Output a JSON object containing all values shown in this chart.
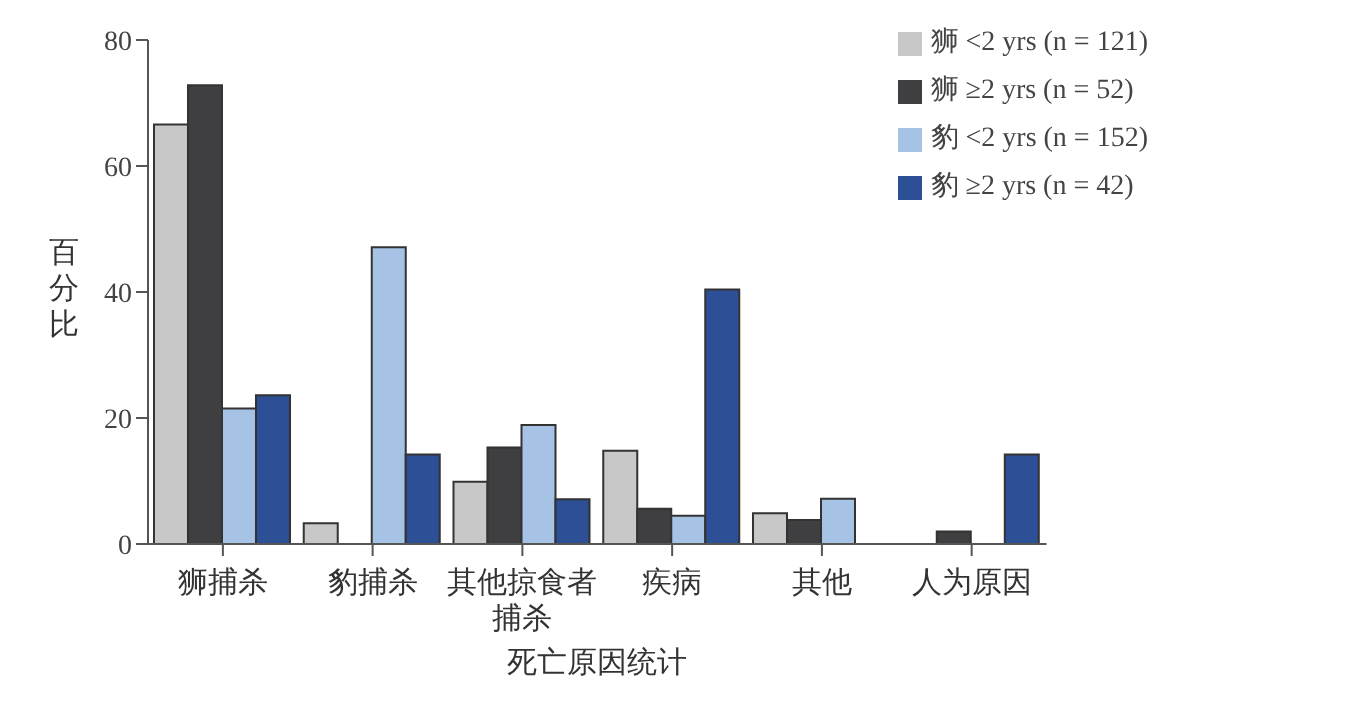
{
  "chart_data": {
    "type": "bar",
    "xlabel": "死亡原因统计",
    "ylabel": "百分比",
    "categories": [
      "狮捕杀",
      "豹捕杀",
      "其他掠食者捕杀",
      "疾病",
      "其他",
      "人为原因"
    ],
    "series": [
      {
        "name": "狮 <2 yrs (n = 121)",
        "color": "#c8c8c8",
        "values": [
          66.6,
          3.3,
          9.9,
          14.8,
          4.9,
          0
        ]
      },
      {
        "name": "狮 ≥2 yrs (n = 52)",
        "color": "#3f3f41",
        "values": [
          72.8,
          0,
          15.3,
          5.6,
          3.8,
          2.0
        ]
      },
      {
        "name": "豹 <2 yrs (n = 152)",
        "color": "#a6c3e6",
        "values": [
          21.5,
          47.1,
          18.9,
          4.5,
          7.2,
          0
        ]
      },
      {
        "name": "豹 ≥2 yrs (n = 42)",
        "color": "#2c4f96",
        "values": [
          23.6,
          14.2,
          7.1,
          40.4,
          0,
          14.2
        ]
      }
    ],
    "ylim": [
      0,
      80
    ],
    "yticks": [
      0,
      20,
      40,
      60,
      80
    ],
    "grid": false,
    "legend": "top right"
  }
}
